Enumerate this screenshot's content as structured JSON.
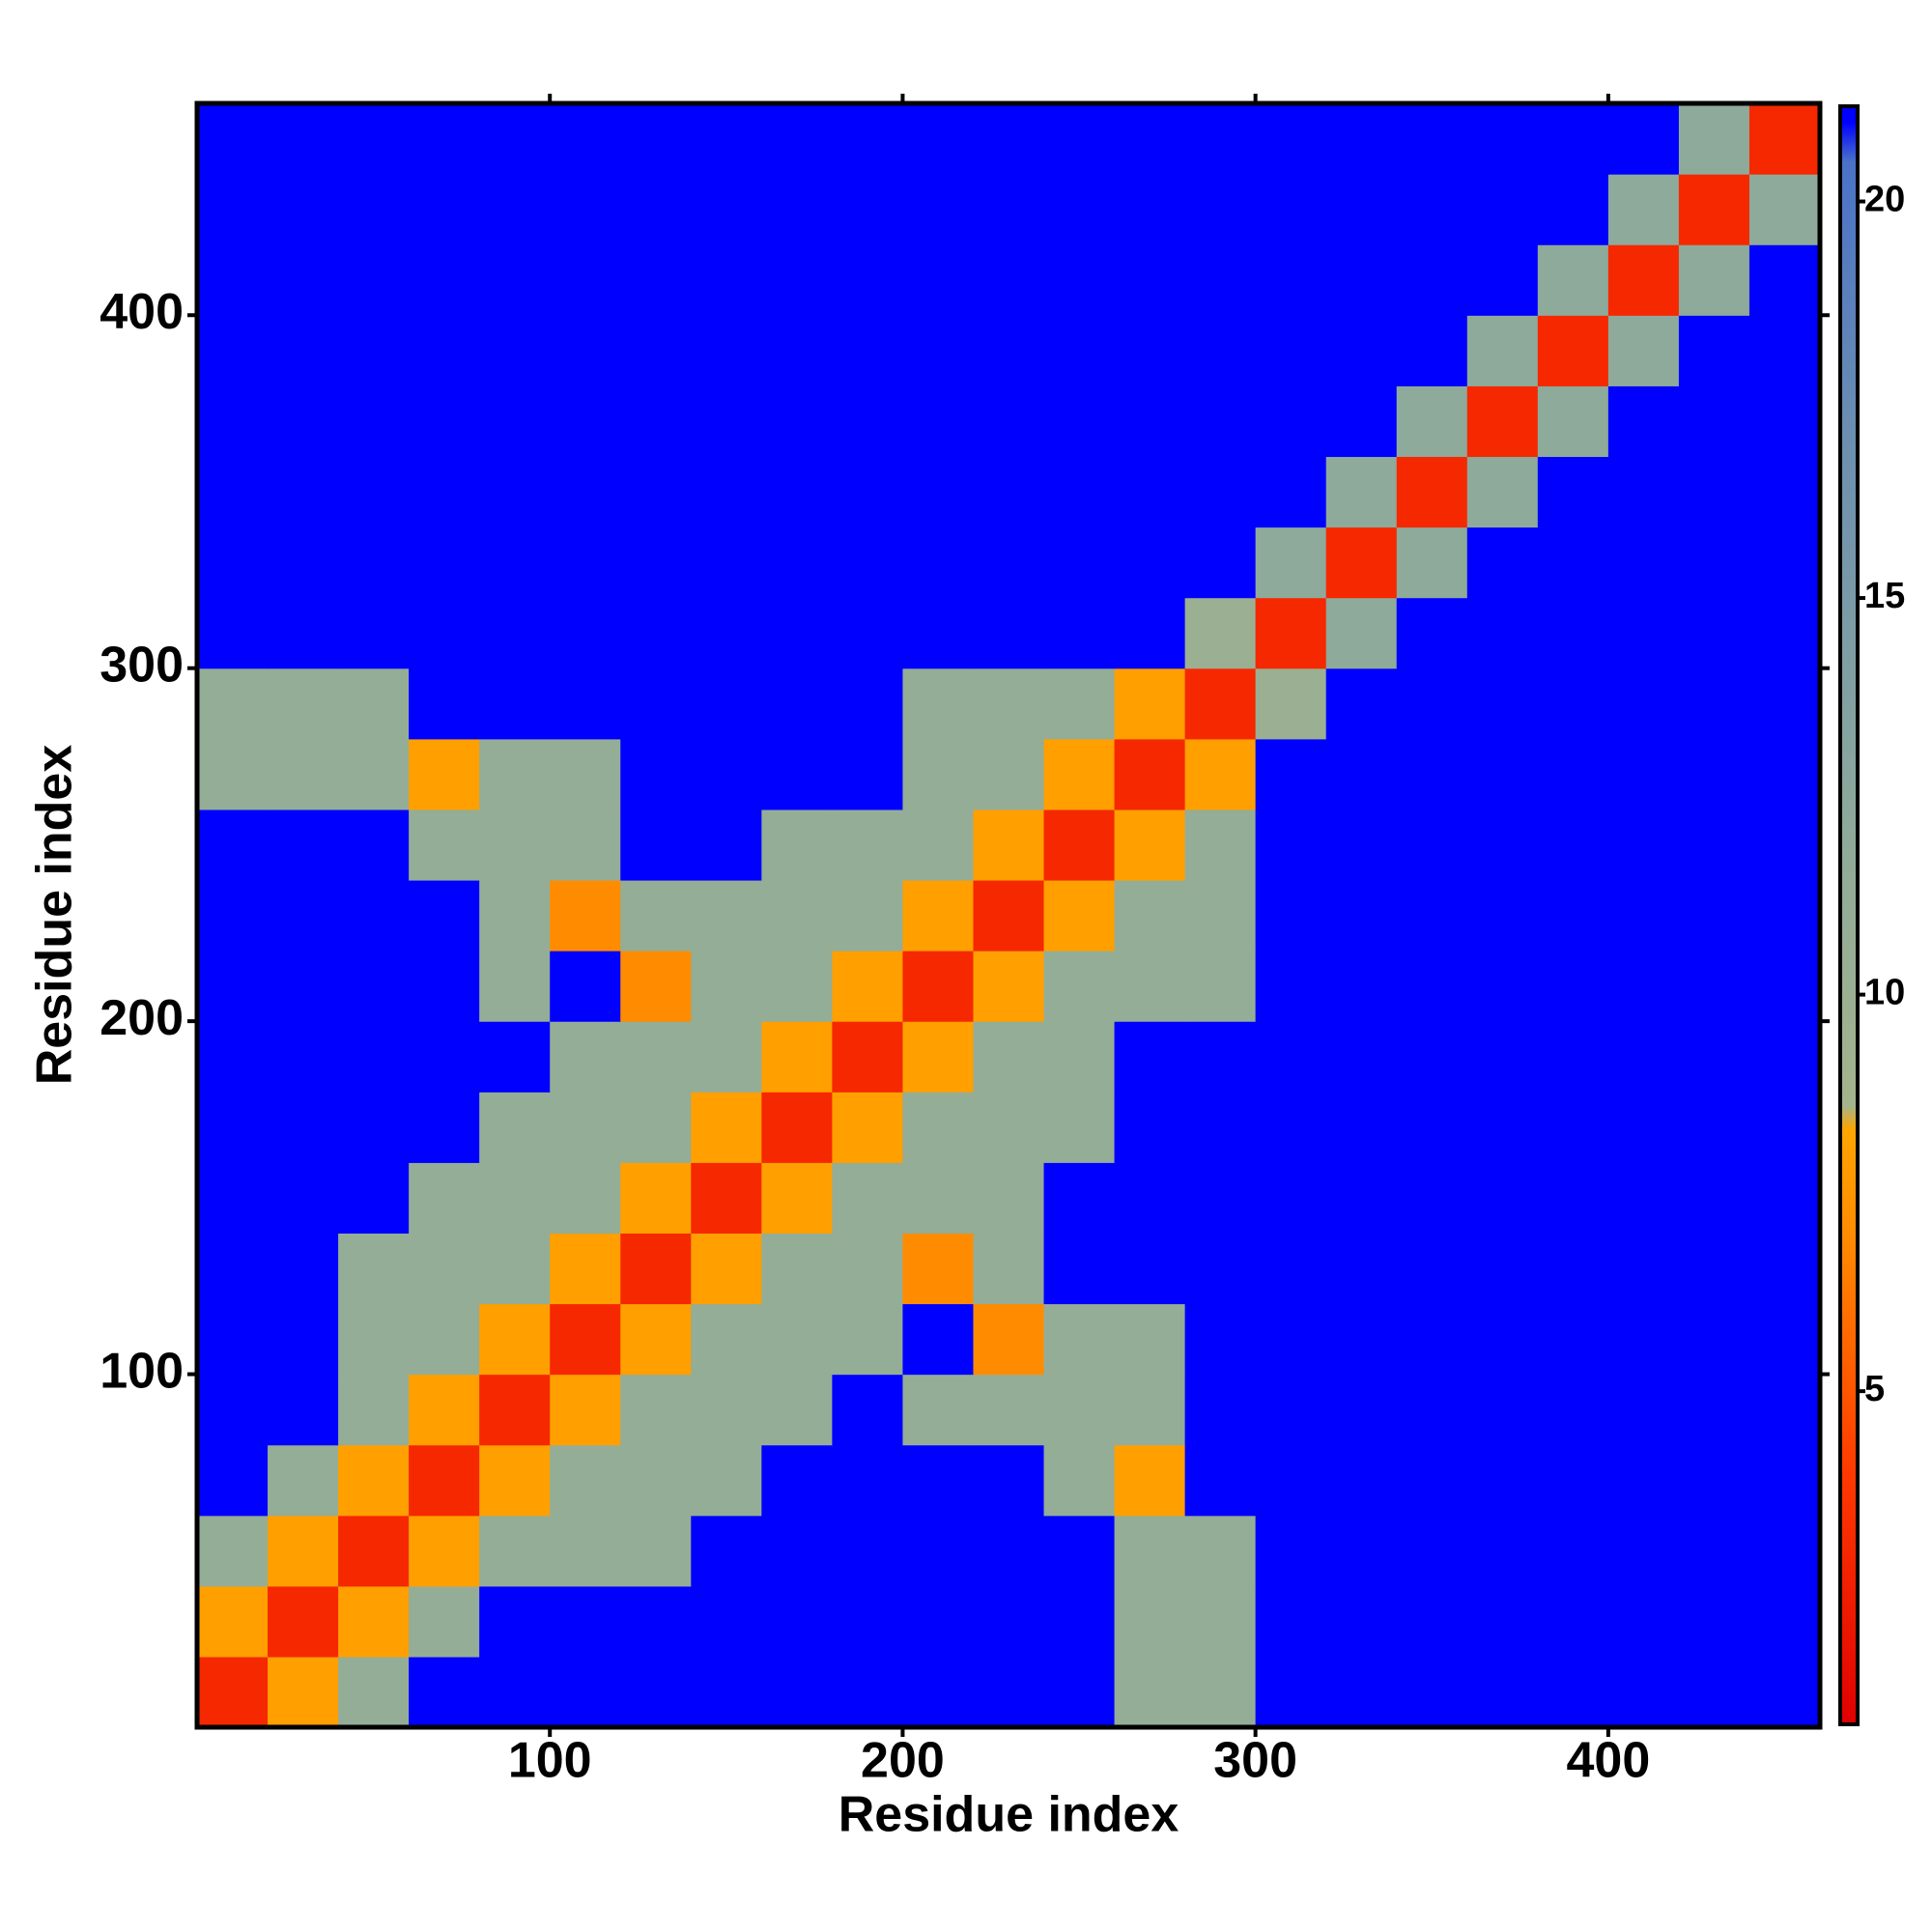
{
  "chart_data": {
    "type": "heatmap",
    "x_label": "Residue index",
    "y_label": "Residue index",
    "xlim": [
      0,
      460
    ],
    "ylim": [
      0,
      460
    ],
    "xticks": [
      100,
      200,
      300,
      400
    ],
    "yticks": [
      100,
      200,
      300,
      400
    ],
    "x_edges": [
      0,
      20,
      40,
      60,
      80,
      100,
      120,
      140,
      160,
      180,
      200,
      220,
      240,
      260,
      280,
      300,
      320,
      340,
      360,
      380,
      400,
      420,
      440,
      460
    ],
    "y_edges": [
      0,
      20,
      40,
      60,
      80,
      100,
      120,
      140,
      160,
      180,
      200,
      220,
      240,
      260,
      280,
      300,
      320,
      340,
      360,
      380,
      400,
      420,
      440,
      460
    ],
    "values": [
      [
        3,
        8,
        11,
        21,
        21,
        21,
        21,
        21,
        21,
        21,
        21,
        21,
        21,
        11,
        11,
        21,
        21,
        21,
        21,
        21,
        21,
        21,
        21
      ],
      [
        8,
        3,
        8,
        11,
        21,
        21,
        21,
        21,
        21,
        21,
        21,
        21,
        21,
        11,
        11,
        21,
        21,
        21,
        21,
        21,
        21,
        21,
        21
      ],
      [
        11,
        8,
        3,
        8,
        11,
        11,
        11,
        21,
        21,
        21,
        21,
        21,
        21,
        11,
        11,
        21,
        21,
        21,
        21,
        21,
        21,
        21,
        21
      ],
      [
        21,
        11,
        8,
        3,
        8,
        11,
        11,
        11,
        21,
        21,
        21,
        21,
        11,
        8,
        21,
        21,
        21,
        21,
        21,
        21,
        21,
        21,
        21
      ],
      [
        21,
        21,
        11,
        8,
        3,
        8,
        11,
        11,
        11,
        21,
        11,
        11,
        11,
        11,
        21,
        21,
        21,
        21,
        21,
        21,
        21,
        21,
        21
      ],
      [
        21,
        21,
        11,
        11,
        8,
        3,
        8,
        11,
        11,
        11,
        21,
        7,
        11,
        11,
        21,
        21,
        21,
        21,
        21,
        21,
        21,
        21,
        21
      ],
      [
        21,
        21,
        11,
        11,
        11,
        8,
        3,
        8,
        11,
        11,
        7,
        11,
        21,
        21,
        21,
        21,
        21,
        21,
        21,
        21,
        21,
        21,
        21
      ],
      [
        21,
        21,
        21,
        11,
        11,
        11,
        8,
        3,
        8,
        11,
        11,
        11,
        21,
        21,
        21,
        21,
        21,
        21,
        21,
        21,
        21,
        21,
        21
      ],
      [
        21,
        21,
        21,
        21,
        11,
        11,
        11,
        8,
        3,
        8,
        11,
        11,
        11,
        21,
        21,
        21,
        21,
        21,
        21,
        21,
        21,
        21,
        21
      ],
      [
        21,
        21,
        21,
        21,
        21,
        11,
        11,
        11,
        8,
        3,
        8,
        11,
        11,
        21,
        21,
        21,
        21,
        21,
        21,
        21,
        21,
        21,
        21
      ],
      [
        21,
        21,
        21,
        21,
        11,
        21,
        7,
        11,
        11,
        8,
        3,
        8,
        11,
        11,
        11,
        21,
        21,
        21,
        21,
        21,
        21,
        21,
        21
      ],
      [
        21,
        21,
        21,
        21,
        11,
        7,
        11,
        11,
        11,
        11,
        8,
        3,
        8,
        11,
        11,
        21,
        21,
        21,
        21,
        21,
        21,
        21,
        21
      ],
      [
        21,
        21,
        21,
        11,
        11,
        11,
        21,
        21,
        11,
        11,
        11,
        8,
        3,
        8,
        11,
        21,
        21,
        21,
        21,
        21,
        21,
        21,
        21
      ],
      [
        11,
        11,
        11,
        8,
        11,
        11,
        21,
        21,
        21,
        21,
        11,
        11,
        8,
        3,
        8,
        21,
        21,
        21,
        21,
        21,
        21,
        21,
        21
      ],
      [
        11,
        11,
        11,
        21,
        21,
        21,
        21,
        21,
        21,
        21,
        11,
        11,
        11,
        8,
        3,
        10,
        21,
        21,
        21,
        21,
        21,
        21,
        21
      ],
      [
        21,
        21,
        21,
        21,
        21,
        21,
        21,
        21,
        21,
        21,
        21,
        21,
        21,
        21,
        10,
        3,
        12,
        21,
        21,
        21,
        21,
        21,
        21
      ],
      [
        21,
        21,
        21,
        21,
        21,
        21,
        21,
        21,
        21,
        21,
        21,
        21,
        21,
        21,
        21,
        12,
        3,
        12,
        21,
        21,
        21,
        21,
        21
      ],
      [
        21,
        21,
        21,
        21,
        21,
        21,
        21,
        21,
        21,
        21,
        21,
        21,
        21,
        21,
        21,
        21,
        12,
        3,
        12,
        21,
        21,
        21,
        21
      ],
      [
        21,
        21,
        21,
        21,
        21,
        21,
        21,
        21,
        21,
        21,
        21,
        21,
        21,
        21,
        21,
        21,
        21,
        12,
        3,
        12,
        21,
        21,
        21
      ],
      [
        21,
        21,
        21,
        21,
        21,
        21,
        21,
        21,
        21,
        21,
        21,
        21,
        21,
        21,
        21,
        21,
        21,
        21,
        12,
        3,
        12,
        21,
        21
      ],
      [
        21,
        21,
        21,
        21,
        21,
        21,
        21,
        21,
        21,
        21,
        21,
        21,
        21,
        21,
        21,
        21,
        21,
        21,
        21,
        12,
        3,
        12,
        21
      ],
      [
        21,
        21,
        21,
        21,
        21,
        21,
        21,
        21,
        21,
        21,
        21,
        21,
        21,
        21,
        21,
        21,
        21,
        21,
        21,
        21,
        12,
        3,
        12
      ],
      [
        21,
        21,
        21,
        21,
        21,
        21,
        21,
        21,
        21,
        21,
        21,
        21,
        21,
        21,
        21,
        21,
        21,
        21,
        21,
        21,
        21,
        12,
        3
      ]
    ],
    "zlim": [
      0.8,
      21.2
    ],
    "zticks": [
      5,
      10,
      15,
      20
    ],
    "colorscale": [
      {
        "value": 0.8,
        "color": "#e00000"
      },
      {
        "value": 4,
        "color": "#ff3a00"
      },
      {
        "value": 7,
        "color": "#ff8c00"
      },
      {
        "value": 8.3,
        "color": "#ffa500"
      },
      {
        "value": 8.6,
        "color": "#a4b48c"
      },
      {
        "value": 12,
        "color": "#8eaa9a"
      },
      {
        "value": 17,
        "color": "#6c8fb0"
      },
      {
        "value": 20.5,
        "color": "#4a72c8"
      },
      {
        "value": 21,
        "color": "#0000ff"
      }
    ]
  }
}
